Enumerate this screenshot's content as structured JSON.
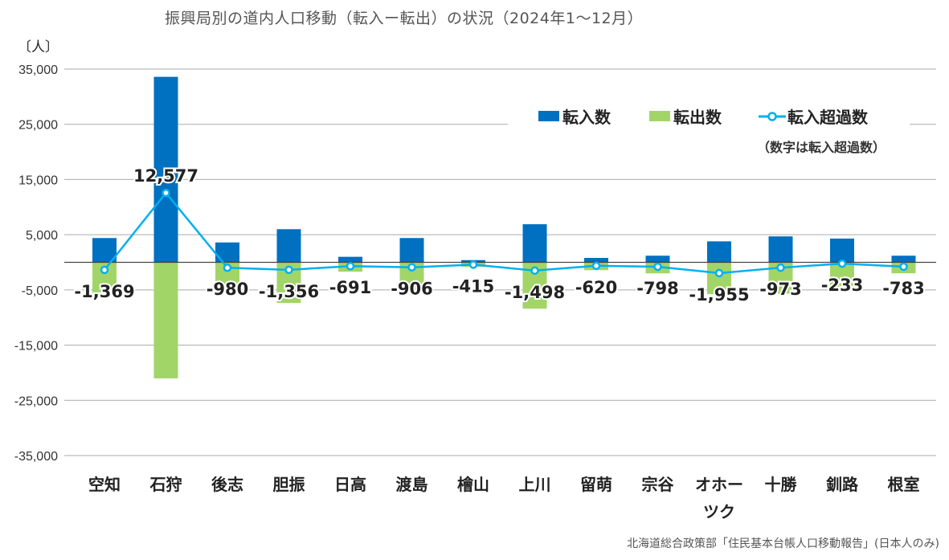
{
  "chart_data": {
    "type": "bar",
    "title": "振興局別の道内人口移動（転入ー転出）の状況（2024年1～12月）",
    "ylabel": "〔人〕",
    "ylim": [
      -35000,
      35000
    ],
    "yticks": [
      35000,
      25000,
      15000,
      5000,
      -5000,
      -15000,
      -25000,
      -35000
    ],
    "ytick_labels": [
      "35,000",
      "25,000",
      "15,000",
      "5,000",
      "-5,000",
      "-15,000",
      "-25,000",
      "-35,000"
    ],
    "grid": true,
    "legend_position": "top-right",
    "categories": [
      "空知",
      "石狩",
      "後志",
      "胆振",
      "日高",
      "渡島",
      "檜山",
      "上川",
      "留萌",
      "宗谷",
      "オホーツク",
      "十勝",
      "釧路",
      "根室"
    ],
    "category_labels": [
      [
        "空知"
      ],
      [
        "石狩"
      ],
      [
        "後志"
      ],
      [
        "胆振"
      ],
      [
        "日高"
      ],
      [
        "渡島"
      ],
      [
        "檜山"
      ],
      [
        "上川"
      ],
      [
        "留萌"
      ],
      [
        "宗谷"
      ],
      [
        "オホー",
        "ツク"
      ],
      [
        "十勝"
      ],
      [
        "釧路"
      ],
      [
        "根室"
      ]
    ],
    "series": [
      {
        "name": "転入数",
        "type": "bar",
        "color": "#0070C0",
        "values": [
          4400,
          33600,
          3600,
          6000,
          1000,
          4400,
          400,
          6900,
          800,
          1200,
          3800,
          4700,
          4300,
          1200
        ]
      },
      {
        "name": "転出数",
        "type": "bar",
        "color": "#A2D567",
        "values": [
          5769,
          21023,
          4580,
          7356,
          1691,
          5306,
          815,
          8398,
          1420,
          1998,
          5755,
          5673,
          4533,
          1983
        ]
      },
      {
        "name": "転入超過数",
        "type": "line",
        "color": "#00B0F0",
        "values": [
          -1369,
          12577,
          -980,
          -1356,
          -691,
          -906,
          -415,
          -1498,
          -620,
          -798,
          -1955,
          -973,
          -233,
          -783
        ]
      }
    ],
    "data_labels": [
      "-1,369",
      "12,577",
      "-980",
      "-1,356",
      "-691",
      "-906",
      "-415",
      "-1,498",
      "-620",
      "-798",
      "-1,955",
      "-973",
      "-233",
      "-783"
    ],
    "annotation": "（数字は転入超過数）",
    "source": "北海道総合政策部「住民基本台帳人口移動報告」(日本人のみ)"
  }
}
